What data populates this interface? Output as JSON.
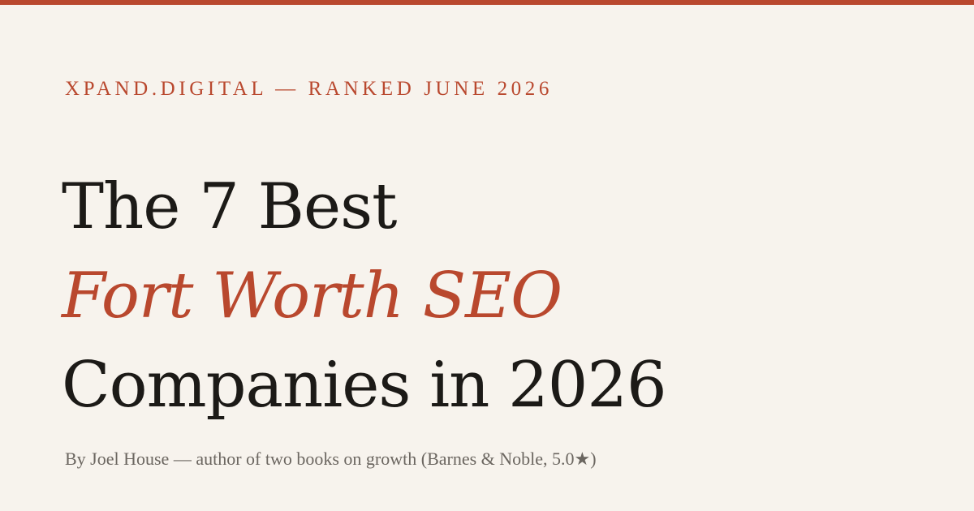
{
  "colors": {
    "background": "#f7f3ed",
    "accent": "#b9482e",
    "headline": "#1c1a17",
    "byline": "#6b6660"
  },
  "header": {
    "kicker": "XPAND.DIGITAL — RANKED JUNE 2026"
  },
  "headline": {
    "line1": "The 7 Best",
    "line2": "Fort Worth SEO",
    "line3": "Companies in 2026"
  },
  "byline": {
    "text": "By Joel House — author of two books on growth (Barnes & Noble, 5.0★)"
  }
}
